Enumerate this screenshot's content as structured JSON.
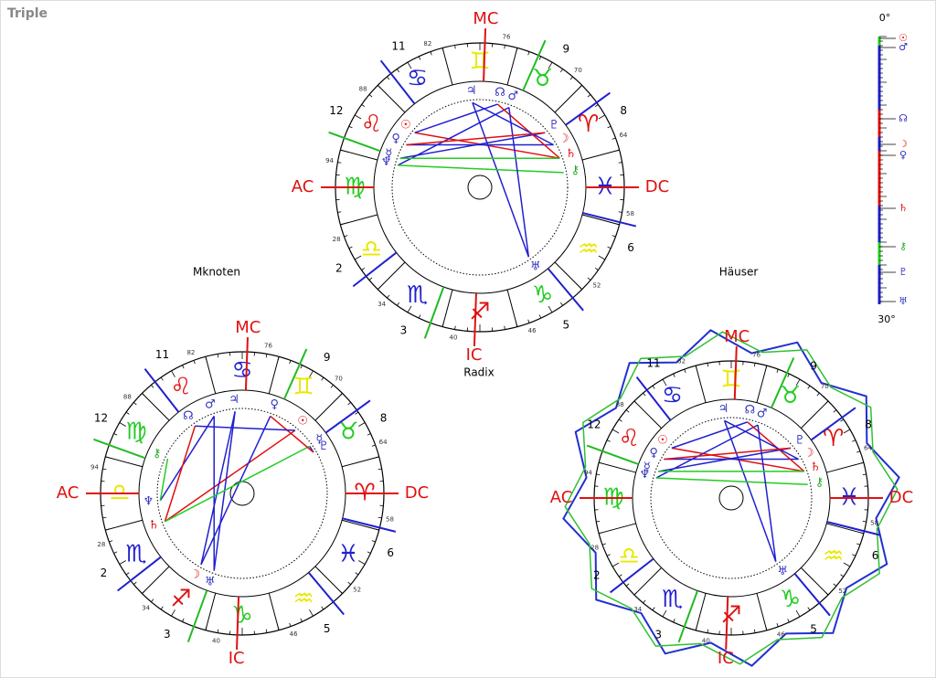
{
  "title": "Triple",
  "signs": [
    {
      "glyph": "♈",
      "color": "#e01010"
    },
    {
      "glyph": "♉",
      "color": "#22cc22"
    },
    {
      "glyph": "♊",
      "color": "#e8e800"
    },
    {
      "glyph": "♋",
      "color": "#2020d0"
    },
    {
      "glyph": "♌",
      "color": "#e01010"
    },
    {
      "glyph": "♍",
      "color": "#22cc22"
    },
    {
      "glyph": "♎",
      "color": "#e8e800"
    },
    {
      "glyph": "♏",
      "color": "#2020d0"
    },
    {
      "glyph": "♐",
      "color": "#e01010"
    },
    {
      "glyph": "♑",
      "color": "#22cc22"
    },
    {
      "glyph": "♒",
      "color": "#e8e800"
    },
    {
      "glyph": "♓",
      "color": "#2020d0"
    }
  ],
  "planets": [
    {
      "glyph": "☉",
      "color": "#e01010"
    },
    {
      "glyph": "☽",
      "color": "#e01010"
    },
    {
      "glyph": "☿",
      "color": "#3030c0"
    },
    {
      "glyph": "♀",
      "color": "#3030c0"
    },
    {
      "glyph": "♂",
      "color": "#3030c0"
    },
    {
      "glyph": "♃",
      "color": "#3030c0"
    },
    {
      "glyph": "♄",
      "color": "#e01010"
    },
    {
      "glyph": "♅",
      "color": "#3030c0"
    },
    {
      "glyph": "♆",
      "color": "#3030c0"
    },
    {
      "glyph": "♇",
      "color": "#3030c0"
    },
    {
      "glyph": "☊",
      "color": "#3030c0"
    },
    {
      "glyph": "⚷",
      "color": "#22aa22"
    }
  ],
  "wheels": [
    {
      "label": "Radix",
      "angles": [
        "MC",
        "DC",
        "IC",
        "AC"
      ],
      "houses": [
        "12",
        "11",
        "9",
        "8",
        "6",
        "5",
        "3",
        "2"
      ],
      "degrees": [
        "82",
        "76",
        "70",
        "64",
        "58",
        "52",
        "46",
        "40",
        "34",
        "28",
        "94",
        "88"
      ]
    },
    {
      "label": "Mknoten",
      "angles": [
        "MC",
        "DC",
        "IC",
        "AC"
      ],
      "houses": [
        "12",
        "11",
        "9",
        "8",
        "6",
        "5",
        "3",
        "2"
      ],
      "degrees": [
        "82",
        "76",
        "70",
        "64",
        "58",
        "52",
        "46",
        "40",
        "34",
        "28",
        "94",
        "88"
      ]
    },
    {
      "label": "Häuser",
      "angles": [
        "MC",
        "DC",
        "IC",
        "AC"
      ],
      "houses": [
        "12",
        "11",
        "9",
        "8",
        "6",
        "5",
        "3",
        "2"
      ],
      "degrees": [
        "82",
        "76",
        "70",
        "64",
        "58",
        "52",
        "46",
        "40",
        "34",
        "28",
        "94",
        "88"
      ]
    }
  ],
  "scale": {
    "top": "0°",
    "bottom": "30°",
    "glyphs": [
      {
        "glyph": "☉",
        "color": "#e01010"
      },
      {
        "glyph": "♂",
        "color": "#3030c0"
      },
      {
        "glyph": "☊",
        "color": "#3030c0"
      },
      {
        "glyph": "☽",
        "color": "#e01010"
      },
      {
        "glyph": "♀",
        "color": "#3030c0"
      },
      {
        "glyph": "♄",
        "color": "#e01010"
      },
      {
        "glyph": "⚷",
        "color": "#22aa22"
      },
      {
        "glyph": "♇",
        "color": "#3030c0"
      },
      {
        "glyph": "♅",
        "color": "#3030c0"
      }
    ]
  }
}
